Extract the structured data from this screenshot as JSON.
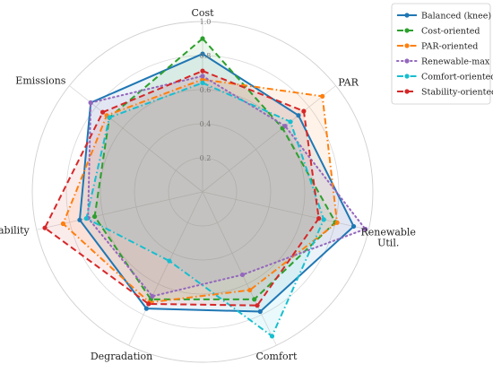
{
  "chart_data": {
    "type": "radar",
    "axes": [
      "Cost",
      "PAR",
      "Renewable Util.",
      "Comfort",
      "Degradation",
      "Stability",
      "Emissions"
    ],
    "axis_label_lines": [
      [
        "Cost"
      ],
      [
        "PAR"
      ],
      [
        "Renewable",
        "Util."
      ],
      [
        "Comfort"
      ],
      [
        "Degradation"
      ],
      [
        "Stability"
      ],
      [
        "Emissions"
      ]
    ],
    "rlim": [
      0,
      1.0
    ],
    "rticks": [
      0.2,
      0.4,
      0.6,
      0.8,
      1.0
    ],
    "rtick_labels": [
      "0.2",
      "0.4",
      "0.6",
      "0.8",
      "1.0"
    ],
    "grid": true,
    "legend_position": "top-right",
    "series": [
      {
        "name": "Balanced (knee)",
        "color": "#1f77b4",
        "dash": "solid",
        "marker": "circle",
        "fill": true,
        "values": [
          0.81,
          0.72,
          0.91,
          0.78,
          0.76,
          0.74,
          0.84
        ]
      },
      {
        "name": "Cost-oriented",
        "color": "#2ca02c",
        "dash": "dashed",
        "marker": "circle",
        "fill": true,
        "values": [
          0.9,
          0.6,
          0.8,
          0.7,
          0.7,
          0.65,
          0.7
        ]
      },
      {
        "name": "PAR-oriented",
        "color": "#ff7f0e",
        "dash": "dashdot",
        "marker": "circle",
        "fill": true,
        "values": [
          0.66,
          0.9,
          0.81,
          0.64,
          0.72,
          0.84,
          0.72
        ]
      },
      {
        "name": "Renewable-max",
        "color": "#9467bd",
        "dash": "dotted",
        "marker": "circle",
        "fill": true,
        "values": [
          0.68,
          0.62,
          0.98,
          0.54,
          0.68,
          0.69,
          0.84
        ]
      },
      {
        "name": "Comfort-oriented",
        "color": "#17becf",
        "dash": "dashdot",
        "marker": "circle",
        "fill": true,
        "values": [
          0.64,
          0.66,
          0.73,
          0.94,
          0.45,
          0.7,
          0.7
        ]
      },
      {
        "name": "Stability-oriented",
        "color": "#d62728",
        "dash": "dashed",
        "marker": "circle",
        "fill": true,
        "values": [
          0.71,
          0.76,
          0.7,
          0.74,
          0.73,
          0.95,
          0.75
        ]
      }
    ]
  }
}
